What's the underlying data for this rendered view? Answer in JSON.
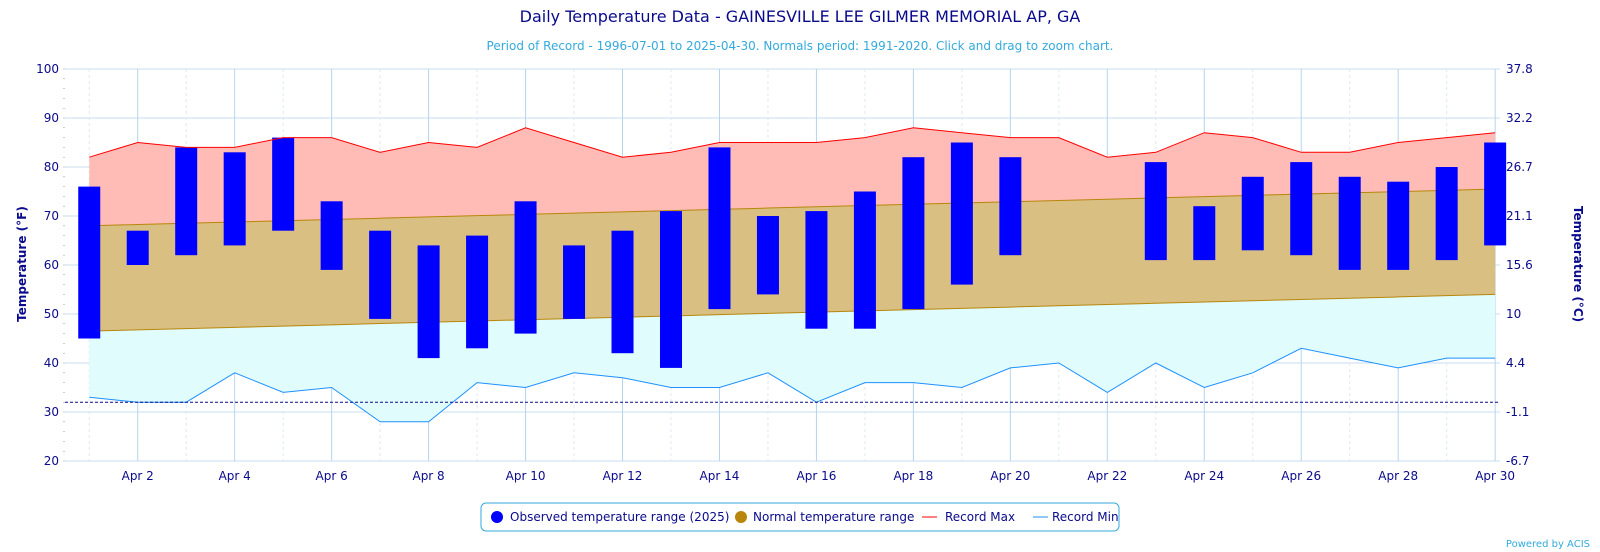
{
  "chart_data": {
    "type": "bar",
    "title": "Daily Temperature Data - GAINESVILLE LEE GILMER MEMORIAL AP, GA",
    "subtitle": "Period of Record - 1996-07-01 to 2025-04-30. Normals period: 1991-2020. Click and drag to zoom chart.",
    "ylabel": "Temperature (°F)",
    "ylabel_right": "Temperature (°C)",
    "ylim": [
      20,
      100
    ],
    "y_ticks": [
      20,
      30,
      40,
      50,
      60,
      70,
      80,
      90,
      100
    ],
    "y_ticks_right": [
      "-6.7",
      "-1.1",
      "4.4",
      "10",
      "15.6",
      "21.1",
      "26.7",
      "32.2",
      "37.8"
    ],
    "x_tick_labels": [
      "Apr 2",
      "Apr 4",
      "Apr 6",
      "Apr 8",
      "Apr 10",
      "Apr 12",
      "Apr 14",
      "Apr 16",
      "Apr 18",
      "Apr 20",
      "Apr 22",
      "Apr 24",
      "Apr 26",
      "Apr 28",
      "Apr 30"
    ],
    "x_tick_days": [
      2,
      4,
      6,
      8,
      10,
      12,
      14,
      16,
      18,
      20,
      22,
      24,
      26,
      28,
      30
    ],
    "days": [
      1,
      2,
      3,
      4,
      5,
      6,
      7,
      8,
      9,
      10,
      11,
      12,
      13,
      14,
      15,
      16,
      17,
      18,
      19,
      20,
      21,
      22,
      23,
      24,
      25,
      26,
      27,
      28,
      29,
      30
    ],
    "freezing_line": 32,
    "grid": true,
    "legend_position": "bottom",
    "series": [
      {
        "name": "Observed temperature range (2025)",
        "color": "#0000ff",
        "low": [
          45,
          60,
          62,
          64,
          67,
          59,
          49,
          41,
          43,
          46,
          49,
          42,
          39,
          51,
          54,
          47,
          47,
          51,
          56,
          62,
          null,
          null,
          61,
          61,
          63,
          62,
          59,
          59,
          61,
          64
        ],
        "high": [
          76,
          67,
          84,
          83,
          86,
          73,
          67,
          64,
          66,
          73,
          64,
          67,
          71,
          84,
          70,
          71,
          75,
          82,
          85,
          82,
          null,
          null,
          81,
          72,
          78,
          81,
          78,
          77,
          80,
          85
        ]
      },
      {
        "name": "Normal temperature range",
        "color": "#b8860b",
        "low_start": 46.5,
        "low_end": 54,
        "high_start": 68,
        "high_end": 75.5
      },
      {
        "name": "Record Max",
        "color": "#ff0000",
        "values": [
          82,
          85,
          84,
          84,
          86,
          86,
          83,
          85,
          84,
          88,
          85,
          82,
          83,
          85,
          85,
          85,
          86,
          88,
          87,
          86,
          86,
          82,
          83,
          87,
          86,
          83,
          83,
          85,
          86,
          87
        ]
      },
      {
        "name": "Record Min",
        "color": "#1e90ff",
        "values": [
          33,
          32,
          32,
          38,
          34,
          35,
          28,
          28,
          36,
          35,
          38,
          37,
          35,
          35,
          38,
          32,
          36,
          36,
          35,
          39,
          40,
          34,
          40,
          35,
          38,
          43,
          41,
          39,
          41,
          41
        ]
      }
    ]
  },
  "credit": "Powered by ACIS"
}
